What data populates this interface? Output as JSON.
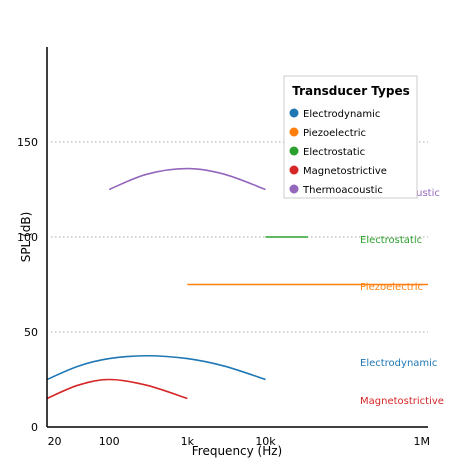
{
  "chart_data": {
    "type": "line",
    "xlabel": "Frequency (Hz)",
    "ylabel": "SPL (dB)",
    "xscale": "log",
    "xlim": [
      16,
      1200000
    ],
    "ylim": [
      0,
      200
    ],
    "x_ticks": [
      {
        "value": 20,
        "label": "20"
      },
      {
        "value": 100,
        "label": "100"
      },
      {
        "value": 1000,
        "label": "1k"
      },
      {
        "value": 10000,
        "label": "10k"
      },
      {
        "value": 1000000,
        "label": "1M"
      }
    ],
    "y_ticks": [
      {
        "value": 0,
        "label": "0"
      },
      {
        "value": 50,
        "label": "50"
      },
      {
        "value": 100,
        "label": "100"
      },
      {
        "value": 150,
        "label": "150"
      }
    ],
    "grid": {
      "horizontal": true,
      "style": "dotted",
      "values": [
        50,
        100,
        150
      ]
    },
    "legend": {
      "title": "Transducer Types",
      "placement": "upper-right"
    },
    "series": [
      {
        "name": "Electrodynamic",
        "label": "Electrodynamic",
        "color": "#1f77b4",
        "x": [
          16,
          40,
          100,
          300,
          1000,
          3000,
          10000
        ],
        "y": [
          25,
          32,
          36,
          37.5,
          36,
          32,
          25
        ]
      },
      {
        "name": "Piezoelectric",
        "label": "Piezoelectric",
        "color": "#ff7f0e",
        "x": [
          1000,
          1200000
        ],
        "y": [
          75,
          75
        ]
      },
      {
        "name": "Electrostatic",
        "label": "Electrostatic",
        "color": "#2ca02c",
        "x": [
          10000,
          35000
        ],
        "y": [
          100,
          100
        ]
      },
      {
        "name": "Magnetostrictive",
        "label": "Magnetostrictive",
        "color": "#d62728",
        "x": [
          16,
          40,
          100,
          300,
          1000
        ],
        "y": [
          15,
          22,
          25,
          22,
          15
        ]
      },
      {
        "name": "Thermoacoustic",
        "label": "Thermoacoustic",
        "color": "#9467bd",
        "x": [
          100,
          300,
          1000,
          3000,
          10000
        ],
        "y": [
          125,
          133,
          136,
          133,
          125
        ]
      }
    ]
  }
}
